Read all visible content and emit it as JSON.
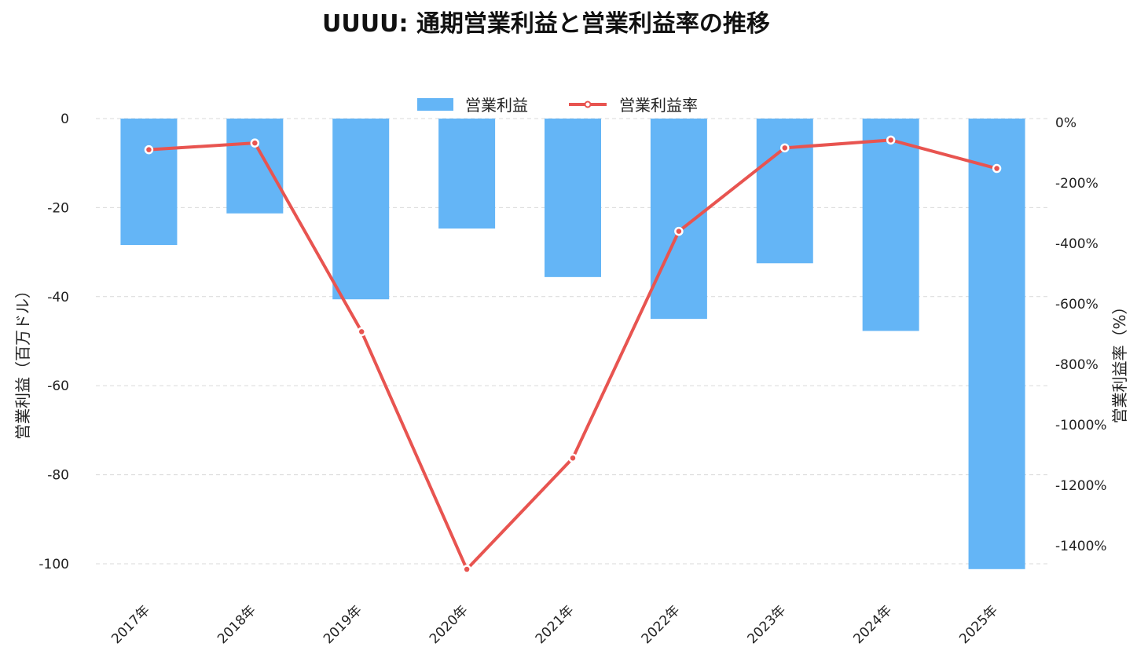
{
  "chart_data": {
    "type": "bar",
    "title": "UUUU: 通期営業利益と営業利益率の推移",
    "categories": [
      "2017年",
      "2018年",
      "2019年",
      "2020年",
      "2021年",
      "2022年",
      "2023年",
      "2024年",
      "2025年"
    ],
    "series": [
      {
        "name": "営業利益",
        "type": "bar",
        "axis": "left",
        "color": "#64b5f6",
        "values": [
          -28.4,
          -21.3,
          -40.6,
          -24.7,
          -35.6,
          -45.0,
          -32.5,
          -47.7,
          -101.2
        ]
      },
      {
        "name": "営業利益率",
        "type": "line",
        "axis": "right",
        "color": "#e85450",
        "values": [
          -90,
          -68,
          -692,
          -1478,
          -1110,
          -360,
          -84,
          -58,
          -152
        ]
      }
    ],
    "ylabel_left": "営業利益（百万ドル）",
    "ylabel_right": "営業利益率（%）",
    "ylim_left": [
      -107,
      0
    ],
    "ylim_right": [
      -1500,
      10
    ],
    "yticks_left": [
      0,
      -20,
      -40,
      -60,
      -80,
      -100
    ],
    "yticks_left_labels": [
      "0",
      "-20",
      "-40",
      "-60",
      "-80",
      "-100"
    ],
    "yticks_right": [
      0,
      -200,
      -400,
      -600,
      -800,
      -1000,
      -1200,
      -1400
    ],
    "yticks_right_labels": [
      "0%",
      "-200%",
      "-400%",
      "-600%",
      "-800%",
      "-1000%",
      "-1200%",
      "-1400%"
    ],
    "grid": true,
    "legend_position": "top-center"
  }
}
